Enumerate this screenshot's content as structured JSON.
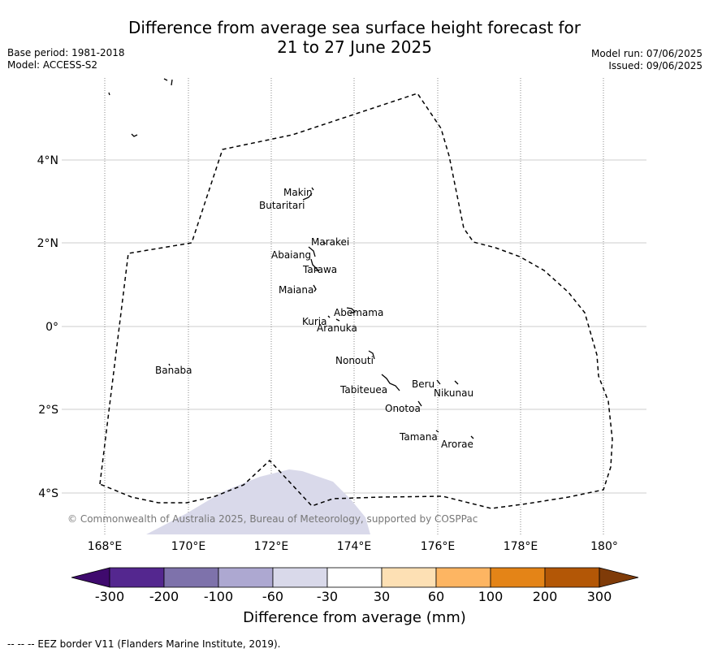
{
  "title_line1": "Difference from average sea surface height forecast for",
  "title_line2": "21 to 27 June 2025",
  "meta_left": {
    "base_period": "Base period: 1981-2018",
    "model": "Model: ACCESS-S2"
  },
  "meta_right": {
    "model_run": "Model run: 07/06/2025",
    "issued": "Issued: 09/06/2025"
  },
  "x_ticks": [
    "168°E",
    "170°E",
    "172°E",
    "174°E",
    "176°E",
    "178°E",
    "180°"
  ],
  "y_ticks": [
    "4°N",
    "2°N",
    "0°",
    "2°S",
    "4°S"
  ],
  "islands": [
    "Makin",
    "Butaritari",
    "Marakei",
    "Abaiang",
    "Tarawa",
    "Maiana",
    "Abemama",
    "Kuria",
    "Aranuka",
    "Nonouti",
    "Banaba",
    "Beru",
    "Nikunau",
    "Tabiteuea",
    "Onotoa",
    "Tamana",
    "Arorae"
  ],
  "copyright": "© Commonwealth of Australia 2025, Bureau of Meteorology, supported by COSPPac",
  "colorbar": {
    "ticks": [
      "-300",
      "-200",
      "-100",
      "-60",
      "-30",
      "30",
      "60",
      "100",
      "200",
      "300"
    ],
    "colors": [
      "#3f0a6e",
      "#54278f",
      "#7e72ab",
      "#ada8d1",
      "#d9d9ea",
      "#ffffff",
      "#fde0b4",
      "#fdb562",
      "#e48417",
      "#b35706",
      "#7f3b08"
    ],
    "title": "Difference from average (mm)"
  },
  "anomaly_fill_color": "#d9d9ea",
  "footnote": "--  --  -- EEZ border V11 (Flanders Marine Institute, 2019)."
}
